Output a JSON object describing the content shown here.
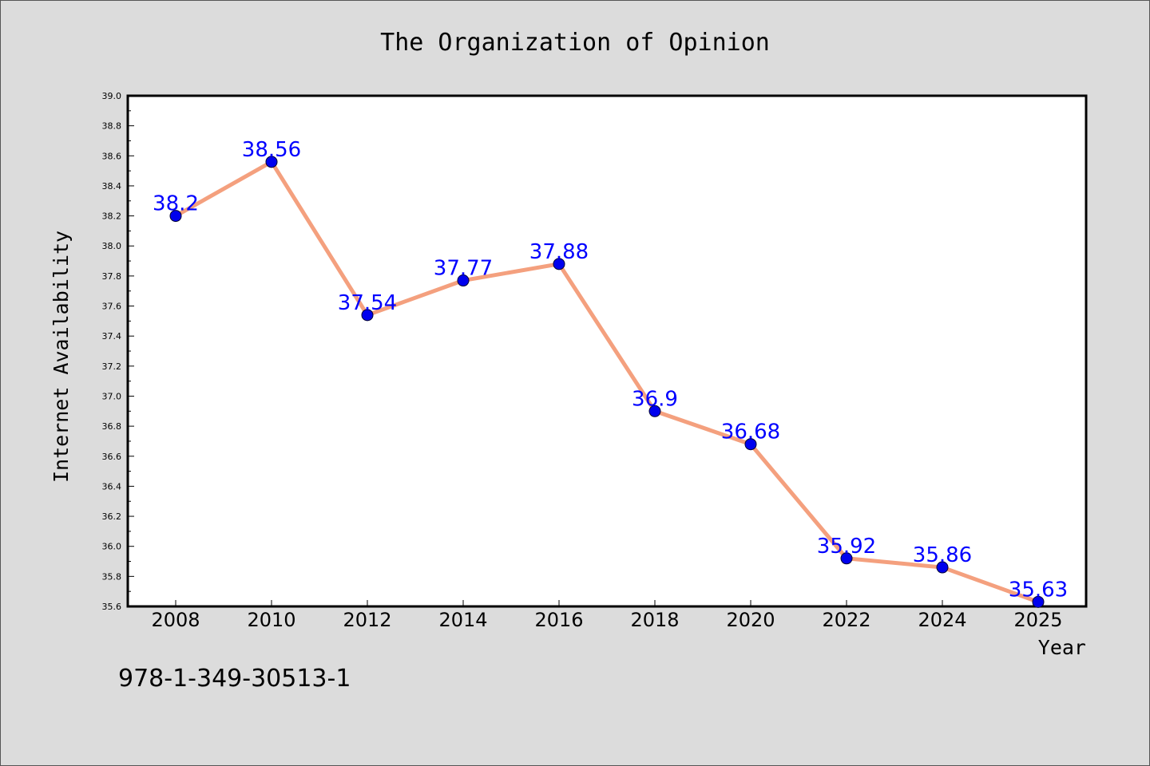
{
  "footer": {
    "isbn": "978-1-349-30513-1"
  },
  "colors": {
    "background": "#dcdcdc",
    "plot_background": "#ffffff",
    "line": "#f4a07e",
    "marker": "#0000ee",
    "data_label": "#0000ff"
  },
  "chart_data": {
    "type": "line",
    "title": "The Organization of Opinion",
    "xlabel": "Year",
    "ylabel": "Internet Availability",
    "categories": [
      "2008",
      "2010",
      "2012",
      "2014",
      "2016",
      "2018",
      "2020",
      "2022",
      "2024",
      "2025"
    ],
    "series": [
      {
        "values": [
          38.2,
          38.56,
          37.54,
          37.77,
          37.88,
          36.9,
          36.68,
          35.92,
          35.86,
          35.63
        ],
        "data_labels": [
          "38.2",
          "38.56",
          "37.54",
          "37.77",
          "37.88",
          "36.9",
          "36.68",
          "35.92",
          "35.86",
          "35.63"
        ]
      }
    ],
    "ylim": [
      35.6,
      39.0
    ],
    "yticks": [
      "35.6",
      "35.8",
      "36.0",
      "36.2",
      "36.4",
      "36.6",
      "36.8",
      "37.0",
      "37.2",
      "37.4",
      "37.6",
      "37.8",
      "38.0",
      "38.2",
      "38.4",
      "38.6",
      "38.8",
      "39.0"
    ],
    "grid": false,
    "legend": "none"
  }
}
